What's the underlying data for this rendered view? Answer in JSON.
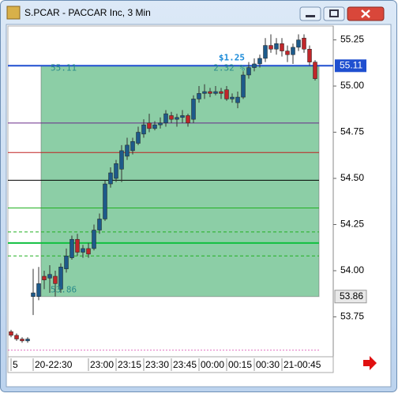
{
  "chart_data": {
    "type": "candlestick",
    "title": "S.PCAR - PACCAR Inc, 3 Min",
    "categories": [
      "5",
      null,
      null,
      null,
      "20-22:30",
      null,
      null,
      null,
      null,
      null,
      null,
      null,
      null,
      null,
      "23:00",
      null,
      null,
      null,
      null,
      "23:15",
      null,
      null,
      null,
      null,
      "23:30",
      null,
      null,
      null,
      null,
      "23:45",
      null,
      null,
      null,
      null,
      "00:00",
      null,
      null,
      null,
      null,
      "00:15",
      null,
      null,
      null,
      null,
      "00:30",
      null,
      null,
      null,
      null,
      "21-00:45",
      null,
      null,
      null,
      null,
      null,
      null
    ],
    "open": [
      53.67,
      53.65,
      53.63,
      53.62,
      53.86,
      53.86,
      53.97,
      53.96,
      53.97,
      53.9,
      54.01,
      54.07,
      54.17,
      54.1,
      54.12,
      54.12,
      54.22,
      54.28,
      54.47,
      54.5,
      54.55,
      54.62,
      54.65,
      54.69,
      54.74,
      54.8,
      54.77,
      54.79,
      54.8,
      54.84,
      54.82,
      54.83,
      54.84,
      54.82,
      54.93,
      54.96,
      54.97,
      54.96,
      54.97,
      54.98,
      54.93,
      54.91,
      54.94,
      55.06,
      55.1,
      55.12,
      55.15,
      55.22,
      55.2,
      55.23,
      55.19,
      55.17,
      55.21,
      55.26,
      55.2,
      55.13
    ],
    "high": [
      53.68,
      53.66,
      53.64,
      53.64,
      54.01,
      54.02,
      54.0,
      54.03,
      54.0,
      54.04,
      54.12,
      54.19,
      54.2,
      54.14,
      54.15,
      54.25,
      54.31,
      54.49,
      54.56,
      54.6,
      54.68,
      54.72,
      54.72,
      54.78,
      54.82,
      54.85,
      54.81,
      54.83,
      54.87,
      54.86,
      54.85,
      54.87,
      54.85,
      54.95,
      55.0,
      55.01,
      54.99,
      55.0,
      54.99,
      55.0,
      54.96,
      54.97,
      55.08,
      55.13,
      55.15,
      55.17,
      55.26,
      55.28,
      55.26,
      55.26,
      55.22,
      55.23,
      55.28,
      55.28,
      55.22,
      55.14
    ],
    "low": [
      53.64,
      53.62,
      53.61,
      53.61,
      53.76,
      53.84,
      53.9,
      53.88,
      53.86,
      53.88,
      53.99,
      54.06,
      54.08,
      54.07,
      54.07,
      54.11,
      54.2,
      54.27,
      54.45,
      54.48,
      54.48,
      54.6,
      54.63,
      54.68,
      54.72,
      54.75,
      54.76,
      54.77,
      54.78,
      54.8,
      54.78,
      54.8,
      54.78,
      54.8,
      54.91,
      54.93,
      54.94,
      54.95,
      54.93,
      54.92,
      54.91,
      54.88,
      54.93,
      55.04,
      55.08,
      55.1,
      55.13,
      55.18,
      55.17,
      55.16,
      55.13,
      55.12,
      55.19,
      55.18,
      55.11,
      55.03
    ],
    "close": [
      53.65,
      53.63,
      53.62,
      53.63,
      53.88,
      53.93,
      53.95,
      53.98,
      53.93,
      54.02,
      54.08,
      54.17,
      54.1,
      54.12,
      54.09,
      54.22,
      54.28,
      54.47,
      54.53,
      54.58,
      54.65,
      54.68,
      54.7,
      54.75,
      54.79,
      54.77,
      54.79,
      54.8,
      54.85,
      54.82,
      54.83,
      54.84,
      54.8,
      54.93,
      54.96,
      54.97,
      54.96,
      54.97,
      54.96,
      54.93,
      54.94,
      54.94,
      55.06,
      55.1,
      55.12,
      55.15,
      55.22,
      55.2,
      55.23,
      55.19,
      55.17,
      55.21,
      55.25,
      55.2,
      55.13,
      55.04
    ],
    "up_color": "#1d5a8a",
    "down_color": "#c0262a",
    "ylim": [
      53.534,
      55.325
    ],
    "yticks": [
      55.25,
      {
        "value": 55.0,
        "label": "55.00"
      },
      54.75,
      {
        "value": 54.5,
        "label": "54.50"
      },
      54.25,
      {
        "value": 54.0,
        "label": "54.00"
      },
      53.75
    ],
    "last_price": 55.11,
    "levels": [
      {
        "value": 55.11,
        "color": "#1f4fd0",
        "style": "solid"
      },
      {
        "value": 54.8,
        "color": "#6a2a8a",
        "style": "solid"
      },
      {
        "value": 54.64,
        "color": "#c02020",
        "style": "solid"
      },
      {
        "value": 54.49,
        "color": "#000000",
        "style": "solid"
      },
      {
        "value": 54.34,
        "color": "#22b022",
        "style": "solid"
      },
      {
        "value": 54.21,
        "color": "#22b022",
        "style": "dashed"
      },
      {
        "value": 54.15,
        "color": "#10c040",
        "style": "thick"
      },
      {
        "value": 54.08,
        "color": "#22b022",
        "style": "dashed"
      },
      {
        "value": 53.57,
        "color": "#e070c0",
        "style": "dotted"
      }
    ],
    "measure": {
      "high": 55.11,
      "low": 53.86,
      "change_label": "$1.25",
      "percent_label": "2.32 %",
      "color": "#3fae6a"
    }
  }
}
